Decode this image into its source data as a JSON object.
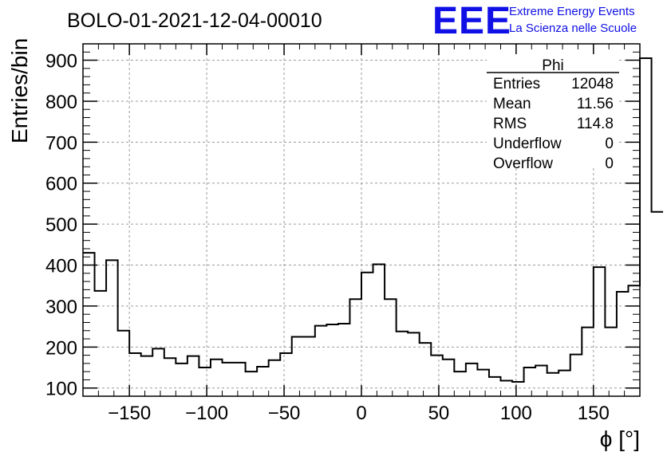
{
  "chart_data": {
    "type": "histogram",
    "title": "BOLO-01-2021-12-04-00010",
    "xlabel": "ϕ [°]",
    "ylabel": "Entries/bin",
    "xlim": [
      -180,
      180
    ],
    "ylim": [
      80,
      940
    ],
    "x_ticks": [
      -150,
      -100,
      -50,
      0,
      50,
      100,
      150
    ],
    "x_tick_labels": [
      "−150",
      "−100",
      "−50",
      "0",
      "50",
      "100",
      "150"
    ],
    "y_ticks": [
      100,
      200,
      300,
      400,
      500,
      600,
      700,
      800,
      900
    ],
    "y_tick_labels": [
      "100",
      "200",
      "300",
      "400",
      "500",
      "600",
      "700",
      "800",
      "900"
    ],
    "grid": true,
    "bin_width": 7.5,
    "bin_start": -180,
    "values": [
      430,
      337,
      412,
      240,
      185,
      178,
      196,
      173,
      160,
      178,
      150,
      170,
      162,
      162,
      140,
      152,
      168,
      185,
      225,
      225,
      252,
      255,
      257,
      317,
      382,
      402,
      317,
      238,
      235,
      210,
      180,
      170,
      140,
      160,
      145,
      127,
      118,
      115,
      150,
      155,
      137,
      143,
      182,
      248,
      395,
      248,
      335,
      350,
      905,
      530
    ],
    "stats": {
      "name": "Phi",
      "rows": [
        {
          "label": "Entries",
          "value": "12048"
        },
        {
          "label": "Mean",
          "value": "11.56"
        },
        {
          "label": "RMS",
          "value": "114.8"
        },
        {
          "label": "Underflow",
          "value": "0"
        },
        {
          "label": "Overflow",
          "value": "0"
        }
      ]
    },
    "logo": {
      "mark": "EEE",
      "line1": "Extreme Energy Events",
      "line2": "La Scienza nelle Scuole"
    }
  }
}
